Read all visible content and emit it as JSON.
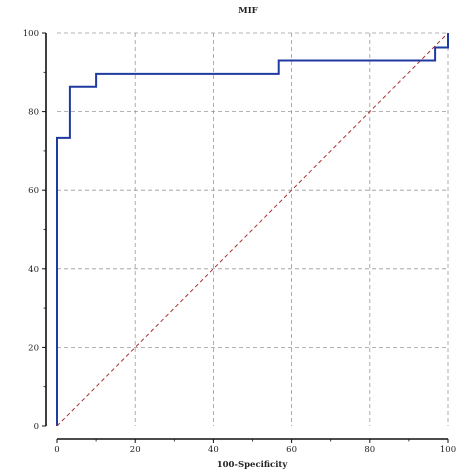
{
  "chart_data": {
    "type": "line",
    "title": "MIF",
    "xlabel": "100-Specificity",
    "ylabel": "",
    "xlim": [
      0,
      100
    ],
    "ylim": [
      0,
      100
    ],
    "xticks": [
      0,
      20,
      40,
      60,
      80,
      100
    ],
    "yticks": [
      0,
      20,
      40,
      60,
      80,
      100
    ],
    "grid": true,
    "series": [
      {
        "color": "#1f3aa0",
        "style": "step",
        "x": [
          0,
          0,
          3.3,
          3.3,
          10,
          10,
          56.7,
          56.7,
          96.7,
          96.7,
          100,
          100
        ],
        "y": [
          0,
          73.3,
          73.3,
          86.3,
          86.3,
          89.6,
          89.6,
          93,
          93,
          96.3,
          96.3,
          100
        ]
      },
      {
        "color": "#a83232",
        "style": "dashed",
        "x": [
          0,
          100
        ],
        "y": [
          0,
          100
        ]
      }
    ]
  }
}
